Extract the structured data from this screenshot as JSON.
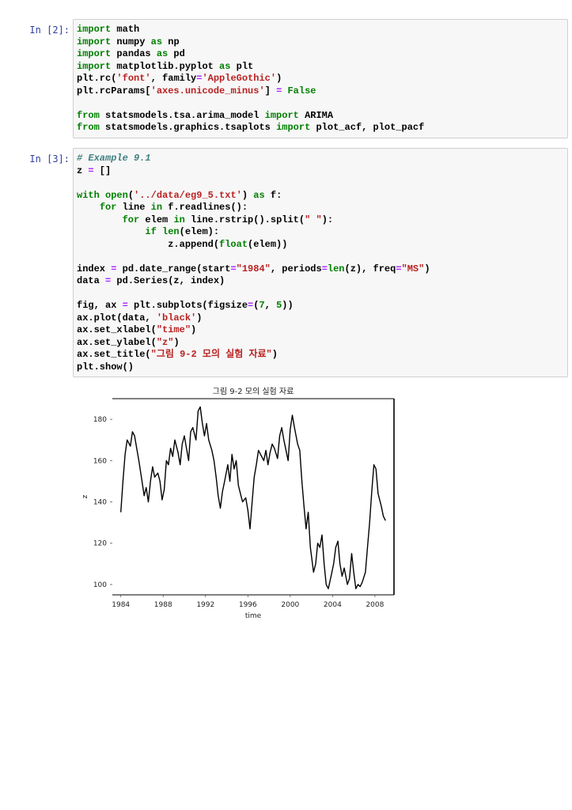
{
  "cells": [
    {
      "prompt": "In [2]:",
      "lines": [
        [
          [
            "kw",
            "import"
          ],
          [
            "p",
            " math"
          ]
        ],
        [
          [
            "kw",
            "import"
          ],
          [
            "p",
            " numpy "
          ],
          [
            "kw",
            "as"
          ],
          [
            "p",
            " np"
          ]
        ],
        [
          [
            "kw",
            "import"
          ],
          [
            "p",
            " pandas "
          ],
          [
            "kw",
            "as"
          ],
          [
            "p",
            " pd"
          ]
        ],
        [
          [
            "kw",
            "import"
          ],
          [
            "p",
            " matplotlib.pyplot "
          ],
          [
            "kw",
            "as"
          ],
          [
            "p",
            " plt"
          ]
        ],
        [
          [
            "p",
            "plt.rc("
          ],
          [
            "str",
            "'font'"
          ],
          [
            "p",
            ", family"
          ],
          [
            "op",
            "="
          ],
          [
            "str",
            "'AppleGothic'"
          ],
          [
            "p",
            ")"
          ]
        ],
        [
          [
            "p",
            "plt.rcParams["
          ],
          [
            "str",
            "'axes.unicode_minus'"
          ],
          [
            "p",
            "] "
          ],
          [
            "op",
            "="
          ],
          [
            "p",
            " "
          ],
          [
            "kw",
            "False"
          ]
        ],
        [],
        [
          [
            "kw",
            "from"
          ],
          [
            "p",
            " statsmodels.tsa.arima_model "
          ],
          [
            "kw",
            "import"
          ],
          [
            "p",
            " ARIMA"
          ]
        ],
        [
          [
            "kw",
            "from"
          ],
          [
            "p",
            " statsmodels.graphics.tsaplots "
          ],
          [
            "kw",
            "import"
          ],
          [
            "p",
            " plot_acf, plot_pacf"
          ]
        ]
      ]
    },
    {
      "prompt": "In [3]:",
      "lines": [
        [
          [
            "cm",
            "# Example 9.1"
          ]
        ],
        [
          [
            "p",
            "z "
          ],
          [
            "op",
            "="
          ],
          [
            "p",
            " []"
          ]
        ],
        [],
        [
          [
            "kw",
            "with"
          ],
          [
            "p",
            " "
          ],
          [
            "bi",
            "open"
          ],
          [
            "p",
            "("
          ],
          [
            "str",
            "'../data/eg9_5.txt'"
          ],
          [
            "p",
            ") "
          ],
          [
            "kw",
            "as"
          ],
          [
            "p",
            " f:"
          ]
        ],
        [
          [
            "p",
            "    "
          ],
          [
            "kw",
            "for"
          ],
          [
            "p",
            " line "
          ],
          [
            "kw",
            "in"
          ],
          [
            "p",
            " f.readlines():"
          ]
        ],
        [
          [
            "p",
            "        "
          ],
          [
            "kw",
            "for"
          ],
          [
            "p",
            " elem "
          ],
          [
            "kw",
            "in"
          ],
          [
            "p",
            " line.rstrip().split("
          ],
          [
            "str",
            "\" \""
          ],
          [
            "p",
            "):"
          ]
        ],
        [
          [
            "p",
            "            "
          ],
          [
            "kw",
            "if"
          ],
          [
            "p",
            " "
          ],
          [
            "bi",
            "len"
          ],
          [
            "p",
            "(elem):"
          ]
        ],
        [
          [
            "p",
            "                z.append("
          ],
          [
            "bi",
            "float"
          ],
          [
            "p",
            "(elem))"
          ]
        ],
        [],
        [
          [
            "p",
            "index "
          ],
          [
            "op",
            "="
          ],
          [
            "p",
            " pd.date_range(start"
          ],
          [
            "op",
            "="
          ],
          [
            "str",
            "\"1984\""
          ],
          [
            "p",
            ", periods"
          ],
          [
            "op",
            "="
          ],
          [
            "bi",
            "len"
          ],
          [
            "p",
            "(z), freq"
          ],
          [
            "op",
            "="
          ],
          [
            "str",
            "\"MS\""
          ],
          [
            "p",
            ")"
          ]
        ],
        [
          [
            "p",
            "data "
          ],
          [
            "op",
            "="
          ],
          [
            "p",
            " pd.Series(z, index)"
          ]
        ],
        [],
        [
          [
            "p",
            "fig, ax "
          ],
          [
            "op",
            "="
          ],
          [
            "p",
            " plt.subplots(figsize"
          ],
          [
            "op",
            "="
          ],
          [
            "p",
            "("
          ],
          [
            "num",
            "7"
          ],
          [
            "p",
            ", "
          ],
          [
            "num",
            "5"
          ],
          [
            "p",
            "))"
          ]
        ],
        [
          [
            "p",
            "ax.plot(data, "
          ],
          [
            "str",
            "'black'"
          ],
          [
            "p",
            ")"
          ]
        ],
        [
          [
            "p",
            "ax.set_xlabel("
          ],
          [
            "str",
            "\"time\""
          ],
          [
            "p",
            ")"
          ]
        ],
        [
          [
            "p",
            "ax.set_ylabel("
          ],
          [
            "str",
            "\"z\""
          ],
          [
            "p",
            ")"
          ]
        ],
        [
          [
            "p",
            "ax.set_title("
          ],
          [
            "str",
            "\"그림 9-2 모의 실험 자료\""
          ],
          [
            "p",
            ")"
          ]
        ],
        [
          [
            "p",
            "plt.show()"
          ]
        ]
      ]
    }
  ],
  "chart_data": {
    "type": "line",
    "title": "그림 9-2 모의 실험 자료",
    "xlabel": "time",
    "ylabel": "z",
    "xlim": [
      1983.2,
      2009.8
    ],
    "ylim": [
      95,
      190
    ],
    "xticks": [
      1984,
      1988,
      1992,
      1996,
      2000,
      2004,
      2008
    ],
    "yticks": [
      100,
      120,
      140,
      160,
      180
    ],
    "series": [
      {
        "color": "#000000",
        "x": [
          1984.0,
          1984.2,
          1984.4,
          1984.6,
          1984.9,
          1985.1,
          1985.3,
          1985.5,
          1985.7,
          1986.0,
          1986.2,
          1986.4,
          1986.6,
          1986.8,
          1987.0,
          1987.2,
          1987.5,
          1987.7,
          1987.9,
          1988.1,
          1988.3,
          1988.5,
          1988.7,
          1988.9,
          1989.1,
          1989.4,
          1989.6,
          1989.8,
          1990.0,
          1990.2,
          1990.4,
          1990.6,
          1990.8,
          1991.1,
          1991.3,
          1991.5,
          1991.7,
          1991.9,
          1992.1,
          1992.3,
          1992.6,
          1992.8,
          1993.0,
          1993.2,
          1993.4,
          1993.6,
          1993.8,
          1994.1,
          1994.3,
          1994.5,
          1994.7,
          1994.9,
          1995.1,
          1995.3,
          1995.5,
          1995.8,
          1996.0,
          1996.2,
          1996.4,
          1996.6,
          1996.8,
          1997.0,
          1997.3,
          1997.5,
          1997.7,
          1997.9,
          1998.1,
          1998.3,
          1998.5,
          1998.8,
          1999.0,
          1999.2,
          1999.4,
          1999.6,
          1999.8,
          2000.0,
          2000.2,
          2000.4,
          2000.7,
          2000.9,
          2001.1,
          2001.3,
          2001.5,
          2001.7,
          2001.9,
          2002.2,
          2002.4,
          2002.6,
          2002.8,
          2003.0,
          2003.2,
          2003.4,
          2003.6,
          2003.9,
          2004.1,
          2004.3,
          2004.5,
          2004.7,
          2004.9,
          2005.1,
          2005.4,
          2005.6,
          2005.8,
          2006.0,
          2006.2,
          2006.4,
          2006.6,
          2006.8,
          2007.1,
          2007.3,
          2007.5,
          2007.7,
          2007.9,
          2008.1,
          2008.3,
          2008.6,
          2008.8,
          2009.0
        ],
        "y": [
          135,
          150,
          163,
          170,
          167,
          174,
          172,
          166,
          160,
          150,
          143,
          147,
          140,
          150,
          157,
          152,
          154,
          150,
          141,
          146,
          160,
          158,
          166,
          162,
          170,
          164,
          158,
          168,
          172,
          166,
          160,
          174,
          176,
          170,
          184,
          186,
          178,
          172,
          178,
          170,
          165,
          160,
          152,
          143,
          137,
          145,
          150,
          158,
          150,
          163,
          156,
          160,
          148,
          144,
          140,
          142,
          136,
          127,
          140,
          152,
          158,
          165,
          162,
          160,
          165,
          158,
          164,
          168,
          166,
          161,
          172,
          176,
          170,
          165,
          160,
          175,
          182,
          176,
          168,
          165,
          150,
          138,
          127,
          135,
          118,
          106,
          110,
          120,
          118,
          124,
          110,
          100,
          98,
          105,
          110,
          118,
          121,
          110,
          104,
          108,
          100,
          103,
          115,
          106,
          98,
          100,
          99,
          101,
          106,
          118,
          130,
          145,
          158,
          156,
          144,
          138,
          133,
          131
        ]
      }
    ]
  }
}
